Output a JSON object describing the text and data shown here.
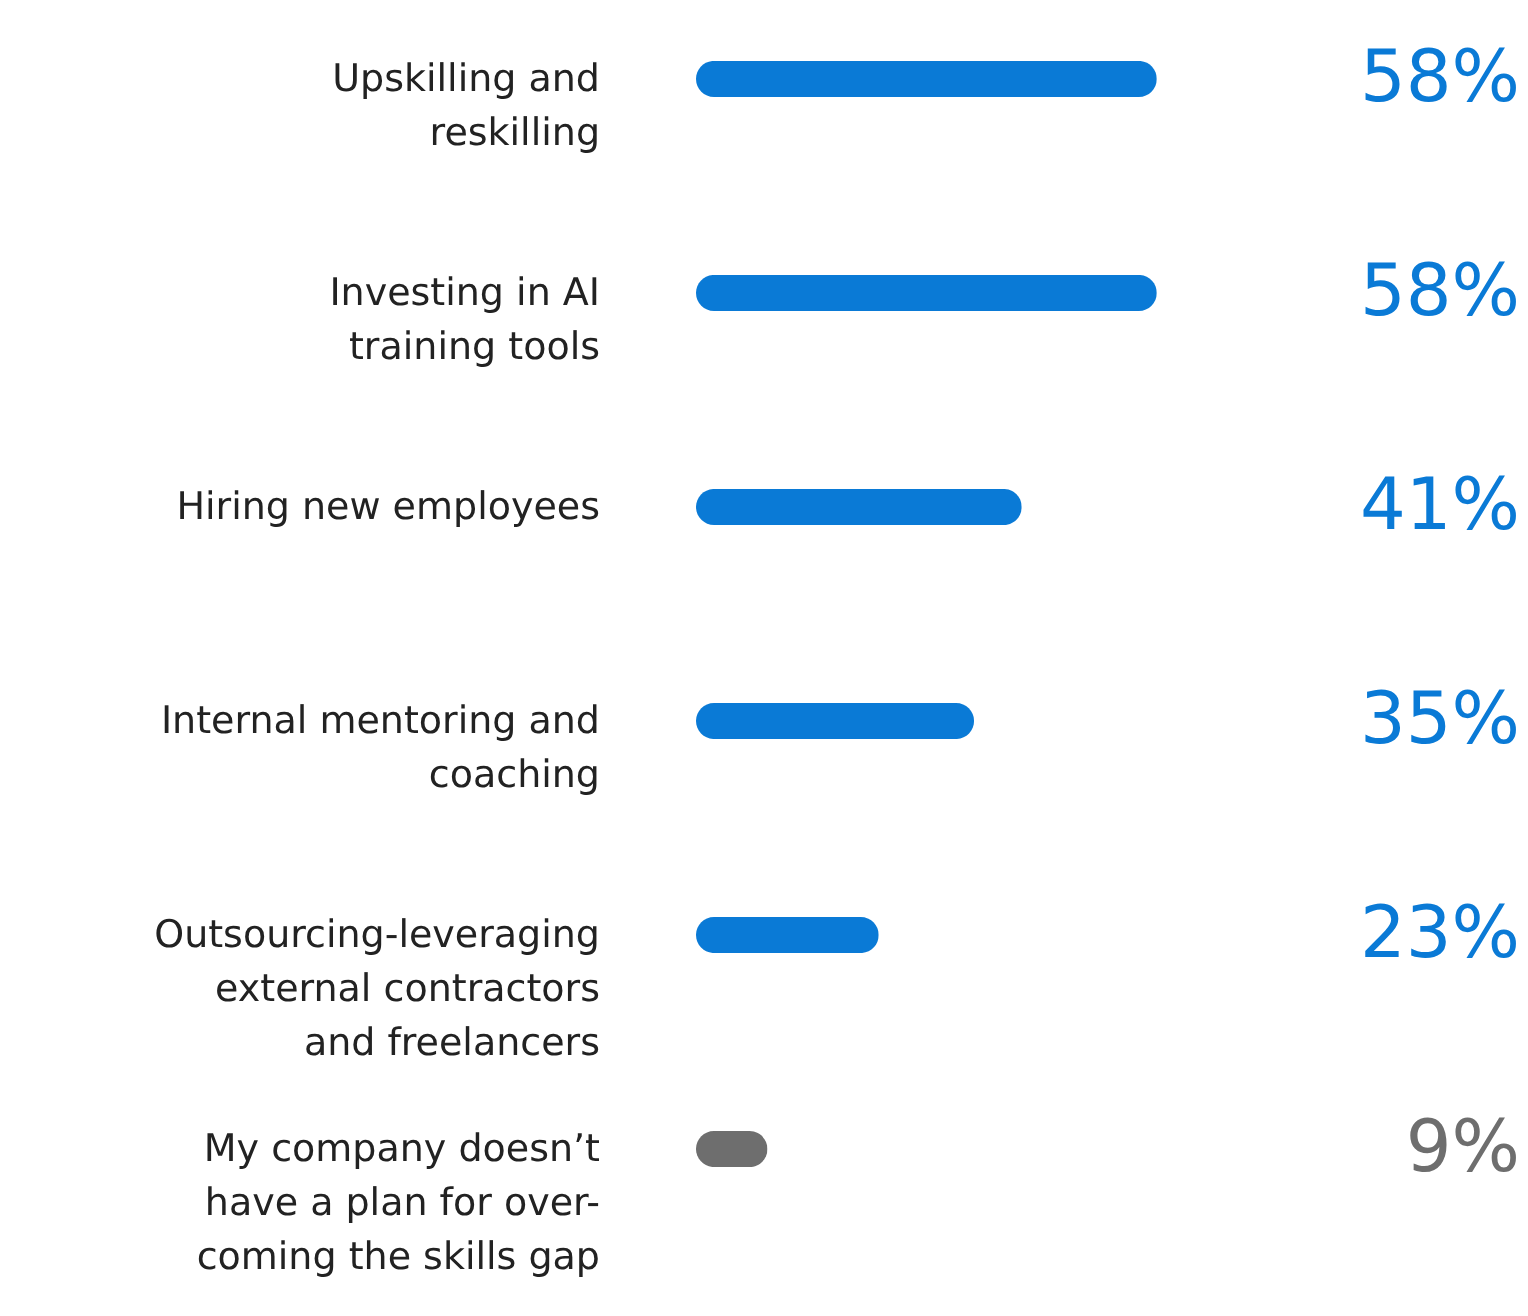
{
  "chart_data": {
    "type": "bar",
    "orientation": "horizontal",
    "categories": [
      "Upskilling and reskilling",
      "Investing in AI training tools",
      "Hiring new employees",
      "Internal mentoring and coaching",
      "Outsourcing-leveraging external contractors and freelancers",
      "My company doesn’t have a plan for over-coming the skills gap"
    ],
    "values": [
      58,
      58,
      41,
      35,
      23,
      9
    ],
    "colors": [
      "#0a7ad6",
      "#0a7ad6",
      "#0a7ad6",
      "#0a7ad6",
      "#0a7ad6",
      "#6e6e6e"
    ],
    "value_labels": [
      "58%",
      "58%",
      "41%",
      "35%",
      "23%",
      "9%"
    ]
  }
}
